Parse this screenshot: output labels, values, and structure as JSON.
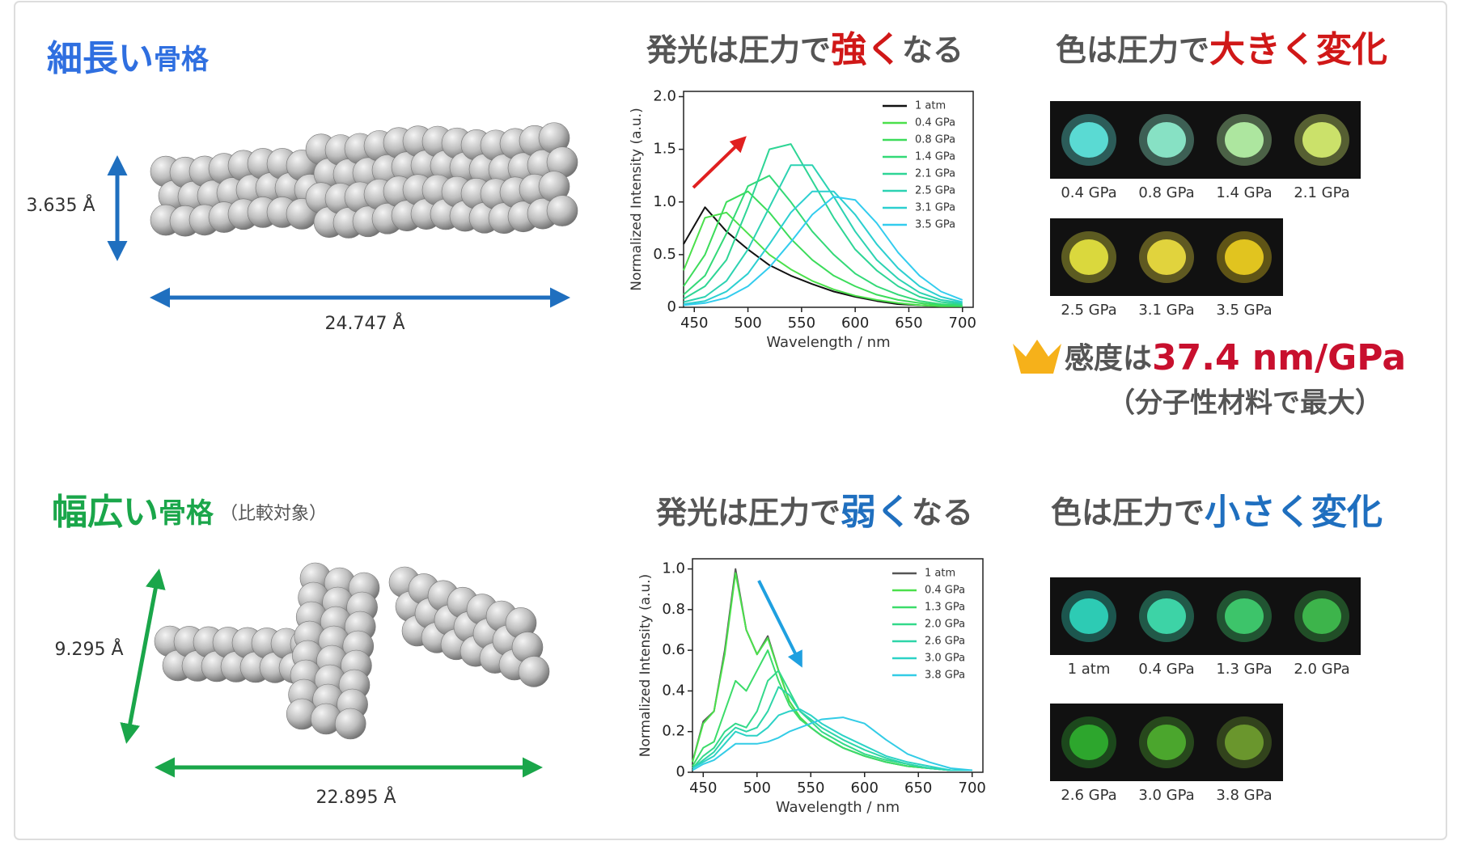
{
  "top": {
    "title": {
      "main": "細長い",
      "sub": "骨格"
    },
    "height_label": "3.635 Å",
    "length_label": "24.747 Å",
    "emission_title": [
      "発光は圧力で",
      "強く",
      "なる"
    ],
    "color_title": [
      "色は圧力で",
      "大きく変化"
    ],
    "photo_labels": [
      "0.4 GPa",
      "0.8 GPa",
      "1.4 GPa",
      "2.1 GPa",
      "2.5 GPa",
      "3.1 GPa",
      "3.5 GPa"
    ],
    "sensitivity": {
      "prefix": "感度は",
      "value": "37.4 nm/GPa",
      "note": "（分子性材料で最大）"
    }
  },
  "bottom": {
    "title": {
      "main": "幅広い",
      "sub": "骨格",
      "note": "（比較対象）"
    },
    "height_label": "9.295 Å",
    "length_label": "22.895 Å",
    "emission_title": [
      "発光は圧力で",
      "弱く",
      "なる"
    ],
    "color_title": [
      "色は圧力で",
      "小さく変化"
    ],
    "photo_labels": [
      "1 atm",
      "0.4 GPa",
      "1.3 GPa",
      "2.0 GPa",
      "2.6 GPa",
      "3.0 GPa",
      "3.8 GPa"
    ]
  },
  "chart_data": [
    {
      "type": "line",
      "xlabel": "Wavelength / nm",
      "ylabel": "Normalized Intensity (a.u.)",
      "x": [
        440,
        460,
        480,
        500,
        520,
        540,
        560,
        580,
        600,
        620,
        640,
        660,
        680,
        700
      ],
      "xlim": [
        440,
        710
      ],
      "xticks": [
        450,
        500,
        550,
        600,
        650,
        700
      ],
      "ylim": [
        0,
        2.05
      ],
      "yticks": [
        0,
        0.5,
        {
          "value": 1,
          "label": "1.0"
        },
        1.5,
        {
          "value": 2,
          "label": "2.0"
        }
      ],
      "legend": "upper right",
      "series": [
        {
          "name": "1 atm",
          "color": "#111111",
          "values": [
            0.6,
            0.95,
            0.72,
            0.55,
            0.4,
            0.3,
            0.22,
            0.15,
            0.1,
            0.06,
            0.03,
            0.02,
            0.01,
            0.01
          ]
        },
        {
          "name": "0.4 GPa",
          "color": "#4be04b",
          "values": [
            0.35,
            0.85,
            0.9,
            0.7,
            0.5,
            0.36,
            0.25,
            0.17,
            0.11,
            0.07,
            0.04,
            0.02,
            0.01,
            0.01
          ]
        },
        {
          "name": "0.8 GPa",
          "color": "#3cdc5a",
          "values": [
            0.2,
            0.5,
            1.0,
            1.1,
            0.9,
            0.65,
            0.45,
            0.3,
            0.2,
            0.12,
            0.07,
            0.04,
            0.02,
            0.01
          ]
        },
        {
          "name": "1.4 GPa",
          "color": "#33d977",
          "values": [
            0.12,
            0.3,
            0.7,
            1.15,
            1.25,
            1.0,
            0.72,
            0.5,
            0.32,
            0.2,
            0.12,
            0.06,
            0.03,
            0.02
          ]
        },
        {
          "name": "2.1 GPa",
          "color": "#2ed595",
          "values": [
            0.08,
            0.2,
            0.45,
            0.95,
            1.5,
            1.55,
            1.2,
            0.85,
            0.55,
            0.35,
            0.2,
            0.1,
            0.05,
            0.03
          ]
        },
        {
          "name": "2.5 GPa",
          "color": "#2cd2b2",
          "values": [
            0.05,
            0.1,
            0.25,
            0.55,
            0.95,
            1.35,
            1.35,
            1.05,
            0.72,
            0.45,
            0.27,
            0.14,
            0.07,
            0.04
          ]
        },
        {
          "name": "3.1 GPa",
          "color": "#2ccfd0",
          "values": [
            0.03,
            0.06,
            0.15,
            0.32,
            0.6,
            0.9,
            1.1,
            1.1,
            0.88,
            0.6,
            0.37,
            0.2,
            0.1,
            0.05
          ]
        },
        {
          "name": "3.5 GPa",
          "color": "#33ccee",
          "values": [
            0.02,
            0.04,
            0.09,
            0.2,
            0.38,
            0.62,
            0.88,
            1.05,
            1.02,
            0.8,
            0.52,
            0.3,
            0.15,
            0.07
          ]
        }
      ]
    },
    {
      "type": "line",
      "xlabel": "Wavelength / nm",
      "ylabel": "Normalized Intensity (a.u.)",
      "x": [
        440,
        450,
        460,
        470,
        480,
        490,
        500,
        510,
        520,
        530,
        540,
        550,
        560,
        580,
        600,
        620,
        640,
        660,
        680,
        700
      ],
      "xlim": [
        440,
        710
      ],
      "xticks": [
        450,
        500,
        550,
        600,
        650,
        700
      ],
      "ylim": [
        0,
        1.05
      ],
      "yticks": [
        0,
        0.2,
        0.4,
        0.6,
        0.8,
        {
          "value": 1,
          "label": "1.0"
        }
      ],
      "legend": "upper right",
      "series": [
        {
          "name": "1 atm",
          "color": "#555555",
          "values": [
            0.05,
            0.25,
            0.3,
            0.6,
            1.0,
            0.7,
            0.58,
            0.67,
            0.5,
            0.35,
            0.27,
            0.22,
            0.18,
            0.12,
            0.08,
            0.05,
            0.03,
            0.02,
            0.01,
            0.01
          ]
        },
        {
          "name": "0.4 GPa",
          "color": "#4be04b",
          "values": [
            0.05,
            0.24,
            0.3,
            0.58,
            0.98,
            0.7,
            0.58,
            0.66,
            0.5,
            0.35,
            0.27,
            0.22,
            0.18,
            0.12,
            0.08,
            0.05,
            0.03,
            0.02,
            0.01,
            0.01
          ]
        },
        {
          "name": "1.3 GPa",
          "color": "#3cdc6a",
          "values": [
            0.03,
            0.12,
            0.15,
            0.3,
            0.45,
            0.4,
            0.5,
            0.6,
            0.45,
            0.33,
            0.26,
            0.22,
            0.18,
            0.12,
            0.08,
            0.05,
            0.03,
            0.02,
            0.01,
            0.01
          ]
        },
        {
          "name": "2.0 GPa",
          "color": "#33d98a",
          "values": [
            0.02,
            0.08,
            0.12,
            0.2,
            0.24,
            0.22,
            0.3,
            0.45,
            0.5,
            0.4,
            0.3,
            0.25,
            0.2,
            0.14,
            0.09,
            0.06,
            0.04,
            0.02,
            0.01,
            0.01
          ]
        },
        {
          "name": "2.6 GPa",
          "color": "#2ed5a8",
          "values": [
            0.02,
            0.06,
            0.1,
            0.17,
            0.22,
            0.2,
            0.22,
            0.3,
            0.42,
            0.38,
            0.3,
            0.26,
            0.22,
            0.16,
            0.11,
            0.07,
            0.04,
            0.02,
            0.01,
            0.01
          ]
        },
        {
          "name": "3.0 GPa",
          "color": "#2cd2c6",
          "values": [
            0.02,
            0.05,
            0.08,
            0.14,
            0.2,
            0.18,
            0.18,
            0.22,
            0.28,
            0.3,
            0.31,
            0.28,
            0.24,
            0.18,
            0.13,
            0.08,
            0.05,
            0.03,
            0.01,
            0.01
          ]
        },
        {
          "name": "3.8 GPa",
          "color": "#33cce6",
          "values": [
            0.01,
            0.04,
            0.06,
            0.1,
            0.14,
            0.14,
            0.14,
            0.15,
            0.17,
            0.2,
            0.22,
            0.24,
            0.26,
            0.27,
            0.24,
            0.16,
            0.09,
            0.05,
            0.02,
            0.01
          ]
        }
      ]
    }
  ]
}
